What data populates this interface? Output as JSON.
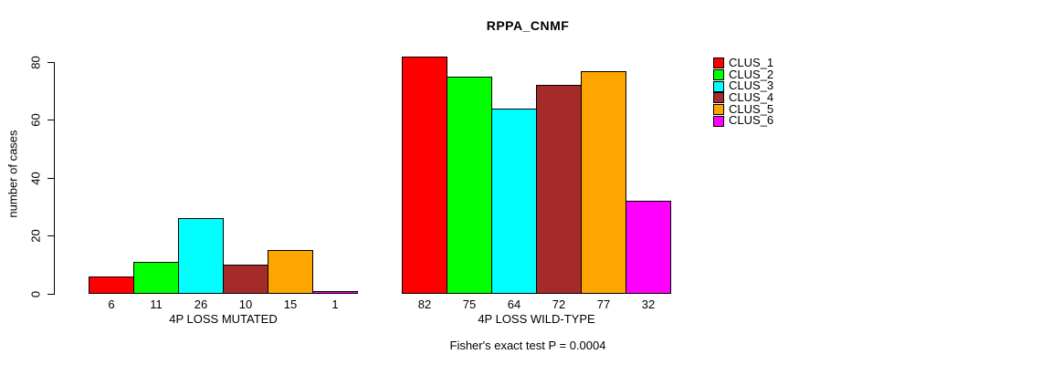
{
  "chart_data": {
    "type": "bar",
    "title": "RPPA_CNMF",
    "ylabel": "number of cases",
    "ylim": [
      0,
      80
    ],
    "yticks": [
      0,
      20,
      40,
      60,
      80
    ],
    "grid": false,
    "legend_position": "right",
    "categories": [
      "4P LOSS MUTATED",
      "4P LOSS WILD-TYPE"
    ],
    "series": [
      {
        "name": "CLUS_1",
        "color": "#FF0000",
        "values": [
          6,
          82
        ]
      },
      {
        "name": "CLUS_2",
        "color": "#00FF00",
        "values": [
          11,
          75
        ]
      },
      {
        "name": "CLUS_3",
        "color": "#00FFFF",
        "values": [
          26,
          64
        ]
      },
      {
        "name": "CLUS_4",
        "color": "#A52A2A",
        "values": [
          10,
          72
        ]
      },
      {
        "name": "CLUS_5",
        "color": "#FFA500",
        "values": [
          15,
          77
        ]
      },
      {
        "name": "CLUS_6",
        "color": "#FF00FF",
        "values": [
          1,
          32
        ]
      }
    ],
    "bar_value_labels_shown": true,
    "annotation": "Fisher's exact test P = 0.0004",
    "axis_color": "#000000",
    "bar_border_color": "#000000"
  }
}
